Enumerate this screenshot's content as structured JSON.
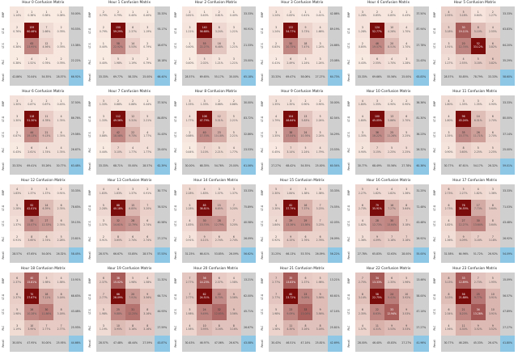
{
  "chart_data": {
    "type": "heatmap",
    "grid": {
      "rows": 4,
      "cols": 6
    },
    "axis_labels": [
      "EMP",
      "LT-G",
      "LT-S",
      "PLC",
      "Recall"
    ],
    "total_label": "Total",
    "colors": {
      "low": "#fbeee6",
      "high": "#7a0c0c",
      "total": "#cfcfcf",
      "corner": "#8ec7e6"
    },
    "panels": [
      {
        "title": "Hour 0 Confusion Matrix",
        "diag_peak": 1,
        "matrix": [
          [
            3,
            1,
            1,
            1,
            0
          ],
          [
            2,
            159,
            7,
            2,
            0
          ],
          [
            1,
            63,
            12,
            2,
            0
          ],
          [
            1,
            4,
            2,
            2,
            0
          ]
        ]
      },
      {
        "title": "Hour 1 Confusion Matrix",
        "diag_peak": 1,
        "matrix": [
          [
            2,
            2,
            1,
            1,
            0
          ],
          [
            2,
            150,
            6,
            3,
            0
          ],
          [
            1,
            58,
            14,
            2,
            0
          ],
          [
            1,
            5,
            3,
            2,
            0
          ]
        ]
      },
      {
        "title": "Hour 2 Confusion Matrix",
        "diag_peak": 1,
        "matrix": [
          [
            2,
            1,
            2,
            1,
            0
          ],
          [
            3,
            140,
            8,
            3,
            0
          ],
          [
            1,
            55,
            16,
            3,
            0
          ],
          [
            1,
            5,
            3,
            3,
            0
          ]
        ]
      },
      {
        "title": "Hour 3 Confusion Matrix",
        "diag_peak": 1,
        "matrix": [
          [
            3,
            2,
            1,
            1,
            0
          ],
          [
            3,
            132,
            9,
            4,
            0
          ],
          [
            2,
            50,
            18,
            3,
            0
          ],
          [
            1,
            6,
            3,
            3,
            0
          ]
        ]
      },
      {
        "title": "Hour 4 Confusion Matrix",
        "diag_peak": 1,
        "matrix": [
          [
            3,
            2,
            2,
            1,
            0
          ],
          [
            3,
            124,
            10,
            4,
            0
          ],
          [
            2,
            46,
            20,
            4,
            0
          ],
          [
            1,
            6,
            4,
            3,
            0
          ]
        ]
      },
      {
        "title": "Hour 5 Confusion Matrix",
        "diag_peak": 2,
        "matrix": [
          [
            4,
            5,
            1,
            2,
            0
          ],
          [
            5,
            30,
            8,
            4,
            0
          ],
          [
            3,
            20,
            52,
            6,
            0
          ],
          [
            2,
            4,
            5,
            6,
            0
          ]
        ]
      },
      {
        "title": "Hour 6 Confusion Matrix",
        "diag_peak": 1,
        "matrix": [
          [
            3,
            2,
            2,
            1,
            0
          ],
          [
            3,
            118,
            11,
            4,
            0
          ],
          [
            2,
            44,
            21,
            4,
            0
          ],
          [
            1,
            6,
            4,
            4,
            0
          ]
        ]
      },
      {
        "title": "Hour 7 Confusion Matrix",
        "diag_peak": 1,
        "matrix": [
          [
            3,
            2,
            2,
            1,
            0
          ],
          [
            3,
            112,
            12,
            5,
            0
          ],
          [
            2,
            42,
            22,
            4,
            0
          ],
          [
            1,
            7,
            4,
            4,
            0
          ]
        ]
      },
      {
        "title": "Hour 8 Confusion Matrix",
        "diag_peak": 1,
        "matrix": [
          [
            3,
            3,
            2,
            2,
            0
          ],
          [
            4,
            108,
            12,
            5,
            0
          ],
          [
            2,
            40,
            23,
            5,
            0
          ],
          [
            1,
            7,
            5,
            4,
            0
          ]
        ]
      },
      {
        "title": "Hour 9 Confusion Matrix",
        "diag_peak": 1,
        "matrix": [
          [
            3,
            3,
            2,
            2,
            0
          ],
          [
            4,
            104,
            13,
            5,
            0
          ],
          [
            3,
            38,
            24,
            5,
            0
          ],
          [
            1,
            7,
            5,
            4,
            0
          ]
        ]
      },
      {
        "title": "Hour 10 Confusion Matrix",
        "diag_peak": 1,
        "matrix": [
          [
            4,
            3,
            2,
            2,
            0
          ],
          [
            4,
            100,
            13,
            6,
            0
          ],
          [
            3,
            36,
            25,
            5,
            0
          ],
          [
            2,
            7,
            5,
            5,
            0
          ]
        ]
      },
      {
        "title": "Hour 11 Confusion Matrix",
        "diag_peak": 1,
        "matrix": [
          [
            4,
            3,
            3,
            2,
            0
          ],
          [
            4,
            96,
            14,
            6,
            0
          ],
          [
            3,
            35,
            26,
            6,
            0
          ],
          [
            2,
            8,
            5,
            5,
            0
          ]
        ]
      },
      {
        "title": "Hour 12 Confusion Matrix",
        "diag_peak": 1,
        "matrix": [
          [
            4,
            3,
            3,
            2,
            0
          ],
          [
            5,
            92,
            14,
            6,
            0
          ],
          [
            3,
            33,
            27,
            6,
            0
          ],
          [
            2,
            8,
            6,
            5,
            0
          ]
        ]
      },
      {
        "title": "Hour 13 Confusion Matrix",
        "diag_peak": 1,
        "matrix": [
          [
            4,
            4,
            3,
            2,
            0
          ],
          [
            5,
            88,
            15,
            7,
            0
          ],
          [
            3,
            32,
            28,
            6,
            0
          ],
          [
            2,
            8,
            6,
            6,
            0
          ]
        ]
      },
      {
        "title": "Hour 14 Confusion Matrix",
        "diag_peak": 1,
        "matrix": [
          [
            5,
            4,
            3,
            3,
            0
          ],
          [
            5,
            85,
            15,
            7,
            0
          ],
          [
            4,
            30,
            28,
            7,
            0
          ],
          [
            2,
            9,
            6,
            6,
            0
          ]
        ]
      },
      {
        "title": "Hour 15 Confusion Matrix",
        "diag_peak": 1,
        "matrix": [
          [
            5,
            4,
            3,
            3,
            0
          ],
          [
            5,
            82,
            16,
            7,
            0
          ],
          [
            4,
            29,
            29,
            7,
            0
          ],
          [
            2,
            9,
            6,
            6,
            0
          ]
        ]
      },
      {
        "title": "Hour 16 Confusion Matrix",
        "diag_peak": 1,
        "matrix": [
          [
            5,
            4,
            4,
            3,
            0
          ],
          [
            6,
            79,
            16,
            8,
            0
          ],
          [
            4,
            28,
            30,
            7,
            0
          ],
          [
            3,
            9,
            7,
            7,
            0
          ]
        ]
      },
      {
        "title": "Hour 17 Confusion Matrix",
        "diag_peak": 1,
        "matrix": [
          [
            6,
            5,
            4,
            3,
            0
          ],
          [
            6,
            76,
            17,
            8,
            0
          ],
          [
            4,
            27,
            30,
            8,
            0
          ],
          [
            3,
            9,
            7,
            7,
            0
          ]
        ]
      },
      {
        "title": "Hour 18 Confusion Matrix",
        "diag_peak": 1,
        "matrix": [
          [
            6,
            40,
            5,
            4,
            0
          ],
          [
            6,
            70,
            18,
            8,
            0
          ],
          [
            5,
            26,
            30,
            8,
            0
          ],
          [
            3,
            10,
            7,
            7,
            0
          ]
        ]
      },
      {
        "title": "Hour 19 Confusion Matrix",
        "diag_peak": 1,
        "matrix": [
          [
            6,
            38,
            5,
            4,
            0
          ],
          [
            7,
            66,
            20,
            9,
            0
          ],
          [
            5,
            25,
            31,
            8,
            0
          ],
          [
            3,
            10,
            8,
            8,
            0
          ]
        ]
      },
      {
        "title": "Hour 20 Confusion Matrix",
        "diag_peak": 1,
        "matrix": [
          [
            7,
            36,
            6,
            4,
            0
          ],
          [
            7,
            62,
            22,
            9,
            0
          ],
          [
            5,
            24,
            32,
            9,
            0
          ],
          [
            4,
            10,
            8,
            8,
            0
          ]
        ]
      },
      {
        "title": "Hour 21 Confusion Matrix",
        "diag_peak": 1,
        "matrix": [
          [
            7,
            35,
            6,
            5,
            0
          ],
          [
            7,
            60,
            23,
            9,
            0
          ],
          [
            5,
            23,
            33,
            9,
            0
          ],
          [
            4,
            11,
            8,
            8,
            0
          ]
        ]
      },
      {
        "title": "Hour 22 Confusion Matrix",
        "diag_peak": 1,
        "matrix": [
          [
            7,
            34,
            6,
            5,
            0
          ],
          [
            8,
            58,
            24,
            10,
            0
          ],
          [
            6,
            22,
            33,
            9,
            0
          ],
          [
            4,
            11,
            9,
            9,
            0
          ]
        ]
      },
      {
        "title": "Hour 23 Confusion Matrix",
        "diag_peak": 1,
        "matrix": [
          [
            8,
            33,
            7,
            5,
            0
          ],
          [
            8,
            56,
            25,
            10,
            0
          ],
          [
            6,
            21,
            34,
            10,
            0
          ],
          [
            4,
            11,
            9,
            9,
            0
          ]
        ]
      }
    ]
  }
}
